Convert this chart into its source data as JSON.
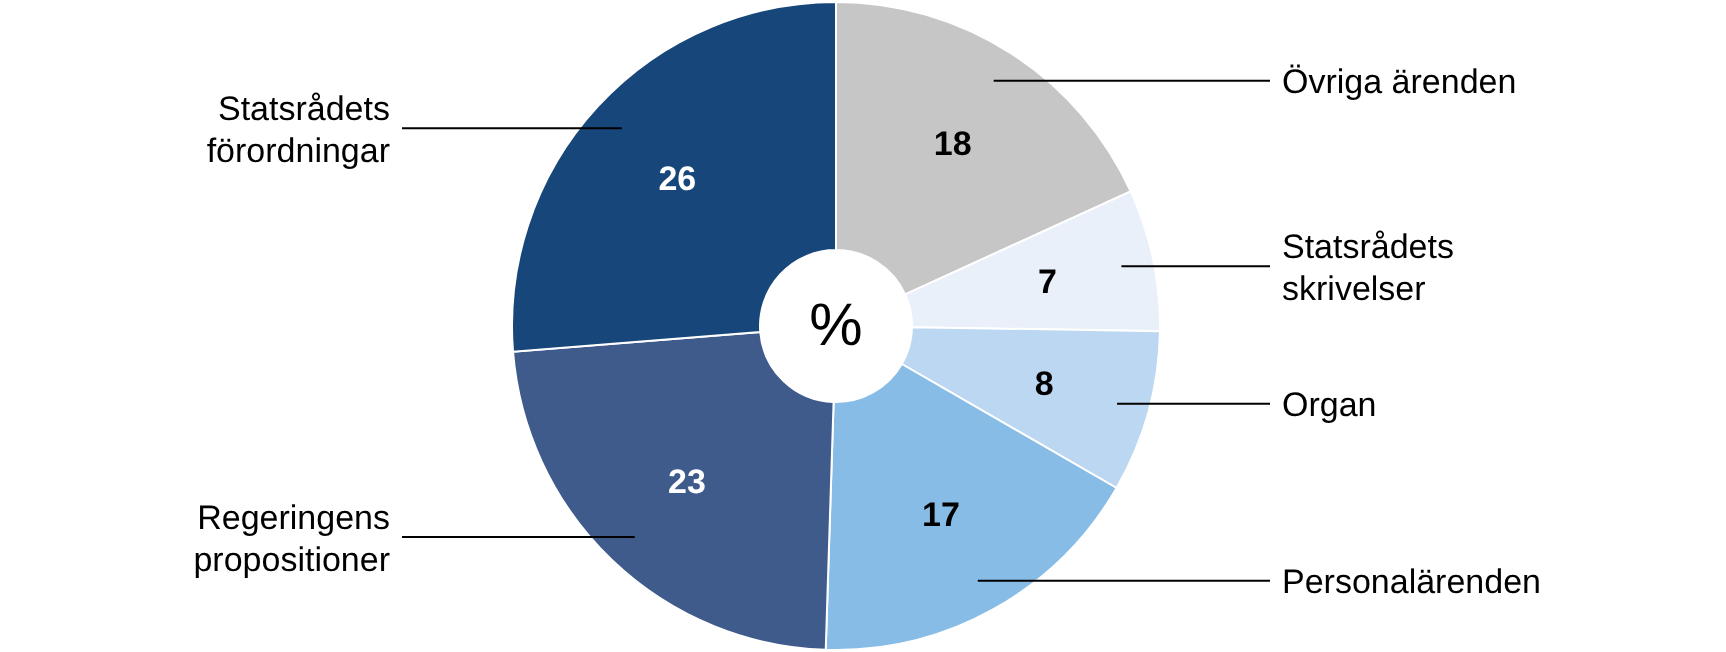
{
  "chart_data": {
    "type": "donut",
    "categories": [
      "Övriga ärenden",
      "Statsrådets skrivelser",
      "Organ",
      "Personalärenden",
      "Regeringens propositioner",
      "Statsrådets förordningar"
    ],
    "values": [
      18,
      7,
      8,
      17,
      23,
      26
    ],
    "colors": [
      "#c6c6c6",
      "#e9f0fa",
      "#bcd7f1",
      "#87bce7",
      "#3e5b8c",
      "#16467a"
    ],
    "data_labels": true,
    "annotations": [
      "%"
    ]
  }
}
